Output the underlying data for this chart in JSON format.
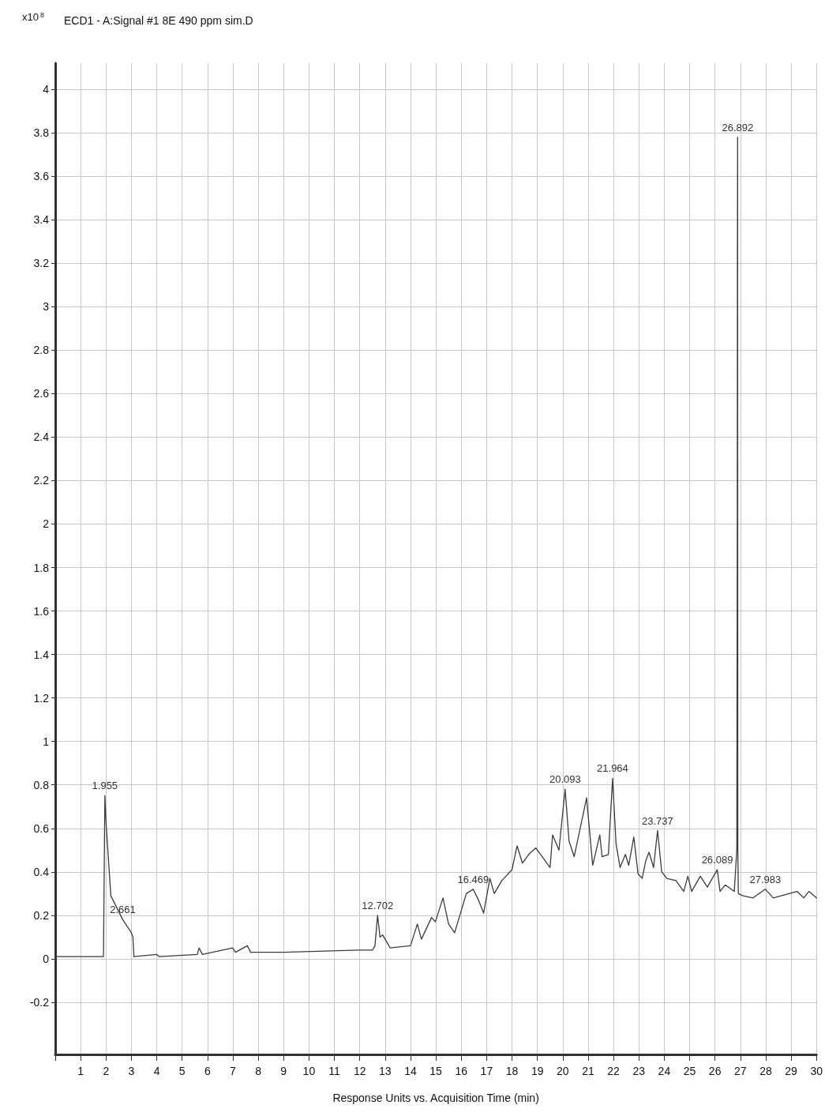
{
  "chart_data": {
    "type": "line",
    "title": "ECD1 - A:Signal #1 8E 490 ppm sim.D",
    "ylabel": "x10$^{8}$",
    "xlabel": "Response Units vs. Acquisition Time (min)",
    "xlim": [
      0,
      30
    ],
    "ylim": [
      -0.44,
      4.12
    ],
    "xticks": [
      {
        "value": 0,
        "label": null
      },
      1,
      2,
      3,
      4,
      5,
      6,
      7,
      8,
      9,
      10,
      11,
      12,
      13,
      14,
      15,
      16,
      17,
      18,
      19,
      20,
      21,
      22,
      23,
      24,
      25,
      26,
      27,
      28,
      29,
      30
    ],
    "yticks": [
      -0.2,
      0,
      0.2,
      0.4,
      0.6,
      0.8,
      1,
      1.2,
      1.4,
      1.6,
      1.8,
      2,
      2.2,
      2.4,
      2.6,
      2.8,
      3,
      3.2,
      3.4,
      3.6,
      3.8,
      4
    ],
    "grid": true,
    "marker": "none",
    "line_style": "solid",
    "series": [
      {
        "color": "#3c3c3c",
        "x": [
          0,
          1.9,
          1.955,
          2.0,
          2.1,
          2.19,
          2.66,
          3.0,
          3.06,
          3.1,
          4.0,
          4.1,
          5.6,
          5.67,
          5.8,
          6.99,
          7.1,
          7.57,
          7.7,
          9,
          11.97,
          12.5,
          12.6,
          12.702,
          12.8,
          12.9,
          13.2,
          14.0,
          14.27,
          14.43,
          14.83,
          14.98,
          15.28,
          15.5,
          15.74,
          16.2,
          16.469,
          16.68,
          16.88,
          17.13,
          17.3,
          17.6,
          18.0,
          18.2,
          18.41,
          18.66,
          18.94,
          19.5,
          19.6,
          19.85,
          20.093,
          20.25,
          20.45,
          20.94,
          21.18,
          21.46,
          21.55,
          21.8,
          21.964,
          22.1,
          22.26,
          22.47,
          22.6,
          22.8,
          22.97,
          23.13,
          23.27,
          23.4,
          23.58,
          23.737,
          23.9,
          24.1,
          24.46,
          24.77,
          24.93,
          25.08,
          25.42,
          25.7,
          26.089,
          26.2,
          26.4,
          26.76,
          26.86,
          26.88,
          26.885,
          26.892,
          26.9,
          26.92,
          27.1,
          27.5,
          27.983,
          28.3,
          29.23,
          29.5,
          29.7,
          30
        ],
        "values": [
          0.01,
          0.01,
          0.75,
          0.63,
          0.45,
          0.29,
          0.18,
          0.12,
          0.1,
          0.01,
          0.02,
          0.01,
          0.02,
          0.05,
          0.02,
          0.05,
          0.03,
          0.06,
          0.03,
          0.03,
          0.04,
          0.04,
          0.06,
          0.2,
          0.1,
          0.11,
          0.05,
          0.06,
          0.16,
          0.09,
          0.19,
          0.17,
          0.28,
          0.16,
          0.12,
          0.3,
          0.32,
          0.27,
          0.21,
          0.37,
          0.3,
          0.36,
          0.41,
          0.52,
          0.44,
          0.48,
          0.51,
          0.42,
          0.57,
          0.5,
          0.78,
          0.54,
          0.47,
          0.74,
          0.43,
          0.57,
          0.47,
          0.48,
          0.83,
          0.53,
          0.42,
          0.48,
          0.43,
          0.56,
          0.39,
          0.37,
          0.45,
          0.49,
          0.42,
          0.59,
          0.4,
          0.37,
          0.36,
          0.31,
          0.38,
          0.31,
          0.38,
          0.33,
          0.41,
          0.31,
          0.34,
          0.31,
          0.5,
          2.08,
          3.25,
          3.78,
          0.5,
          0.3,
          0.29,
          0.28,
          0.32,
          0.28,
          0.31,
          0.28,
          0.31,
          0.28
        ]
      }
    ],
    "annotations": [
      {
        "text": "1.955",
        "x": 1.955,
        "y": 0.75
      },
      {
        "text": "2.661",
        "x": 2.661,
        "y": 0.18
      },
      {
        "text": "12.702",
        "x": 12.702,
        "y": 0.2
      },
      {
        "text": "16.469",
        "x": 16.469,
        "y": 0.32
      },
      {
        "text": "20.093",
        "x": 20.093,
        "y": 0.78
      },
      {
        "text": "21.964",
        "x": 21.964,
        "y": 0.83
      },
      {
        "text": "23.737",
        "x": 23.737,
        "y": 0.59
      },
      {
        "text": "26.089",
        "x": 26.089,
        "y": 0.41
      },
      {
        "text": "26.892",
        "x": 26.892,
        "y": 3.78
      },
      {
        "text": "27.983",
        "x": 27.983,
        "y": 0.32
      }
    ]
  }
}
